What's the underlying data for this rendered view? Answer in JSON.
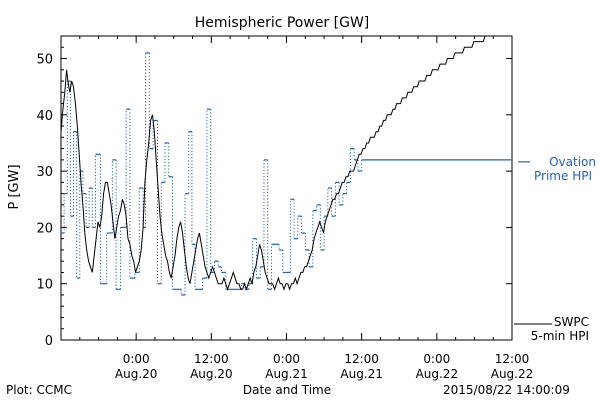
{
  "chart_data": {
    "type": "line",
    "title": "Hemispheric Power [GW]",
    "xlabel": "Date and Time",
    "ylabel": "P [GW]",
    "xlim": [
      -6,
      66
    ],
    "ylim": [
      0,
      54
    ],
    "y_ticks": [
      0,
      10,
      20,
      30,
      40,
      50
    ],
    "x_ticks": [
      {
        "t": 6,
        "label1": "0:00",
        "label2": "Aug.20"
      },
      {
        "t": 18,
        "label1": "12:00",
        "label2": "Aug.20"
      },
      {
        "t": 30,
        "label1": "0:00",
        "label2": "Aug.21"
      },
      {
        "t": 42,
        "label1": "12:00",
        "label2": "Aug.21"
      },
      {
        "t": 54,
        "label1": "0:00",
        "label2": "Aug.22"
      },
      {
        "t": 66,
        "label1": "12:00",
        "label2": "Aug.22"
      }
    ],
    "grid": false,
    "footer_left": "Plot: CCMC",
    "footer_right": "2015/08/22 14:00:09",
    "series": [
      {
        "name": "SWPC 5-min HPI",
        "label_lines": [
          "SWPC",
          "5-min HPI"
        ],
        "color": "#000000",
        "style": "solid",
        "points": [
          [
            -6,
            37
          ],
          [
            -5.7,
            41
          ],
          [
            -5.4,
            44
          ],
          [
            -5.1,
            48
          ],
          [
            -4.9,
            46
          ],
          [
            -4.6,
            44
          ],
          [
            -4.3,
            46
          ],
          [
            -4.0,
            45
          ],
          [
            -3.7,
            42
          ],
          [
            -3.4,
            38
          ],
          [
            -3.1,
            33
          ],
          [
            -2.8,
            28
          ],
          [
            -2.5,
            24
          ],
          [
            -2.2,
            19
          ],
          [
            -1.9,
            16
          ],
          [
            -1.6,
            14
          ],
          [
            -1.3,
            13
          ],
          [
            -1.0,
            12
          ],
          [
            -0.7,
            15
          ],
          [
            -0.4,
            18
          ],
          [
            -0.1,
            21
          ],
          [
            0.2,
            20
          ],
          [
            0.5,
            22
          ],
          [
            0.8,
            26
          ],
          [
            1.1,
            28
          ],
          [
            1.4,
            28
          ],
          [
            1.7,
            26
          ],
          [
            2.0,
            24
          ],
          [
            2.3,
            21
          ],
          [
            2.6,
            18
          ],
          [
            2.9,
            20
          ],
          [
            3.2,
            22
          ],
          [
            3.5,
            23
          ],
          [
            3.8,
            25
          ],
          [
            4.1,
            24
          ],
          [
            4.4,
            22
          ],
          [
            4.7,
            18
          ],
          [
            5.0,
            17
          ],
          [
            5.3,
            15
          ],
          [
            5.6,
            14
          ],
          [
            5.9,
            12
          ],
          [
            6.2,
            13
          ],
          [
            6.5,
            14
          ],
          [
            6.8,
            16
          ],
          [
            7.1,
            20
          ],
          [
            7.4,
            28
          ],
          [
            7.7,
            32
          ],
          [
            8.0,
            35
          ],
          [
            8.3,
            39
          ],
          [
            8.6,
            40
          ],
          [
            8.9,
            37
          ],
          [
            9.2,
            32
          ],
          [
            9.5,
            27
          ],
          [
            9.8,
            22
          ],
          [
            10.1,
            19
          ],
          [
            10.4,
            17
          ],
          [
            10.7,
            15
          ],
          [
            11.0,
            14
          ],
          [
            11.3,
            12
          ],
          [
            11.6,
            11
          ],
          [
            11.9,
            13
          ],
          [
            12.2,
            15
          ],
          [
            12.5,
            18
          ],
          [
            12.8,
            20
          ],
          [
            13.1,
            21
          ],
          [
            13.4,
            19
          ],
          [
            13.7,
            16
          ],
          [
            14.0,
            13
          ],
          [
            14.3,
            11
          ],
          [
            14.6,
            10
          ],
          [
            14.9,
            12
          ],
          [
            15.2,
            14
          ],
          [
            15.5,
            16
          ],
          [
            15.8,
            18
          ],
          [
            16.1,
            19
          ],
          [
            16.4,
            17
          ],
          [
            16.7,
            15
          ],
          [
            17.0,
            13
          ],
          [
            17.3,
            12
          ],
          [
            17.6,
            11
          ],
          [
            17.9,
            12
          ],
          [
            18.2,
            13
          ],
          [
            18.5,
            12
          ],
          [
            18.8,
            11
          ],
          [
            19.1,
            10
          ],
          [
            19.4,
            10
          ],
          [
            19.7,
            10
          ],
          [
            20.0,
            11
          ],
          [
            20.3,
            10
          ],
          [
            20.6,
            9
          ],
          [
            20.9,
            10
          ],
          [
            21.2,
            11
          ],
          [
            21.5,
            12
          ],
          [
            21.8,
            11
          ],
          [
            22.1,
            10
          ],
          [
            22.4,
            10
          ],
          [
            22.7,
            9
          ],
          [
            23.0,
            9
          ],
          [
            23.3,
            10
          ],
          [
            23.6,
            9
          ],
          [
            23.9,
            10
          ],
          [
            24.2,
            11
          ],
          [
            24.5,
            10
          ],
          [
            24.8,
            12
          ],
          [
            25.1,
            13
          ],
          [
            25.4,
            15
          ],
          [
            25.7,
            17
          ],
          [
            26.0,
            16
          ],
          [
            26.3,
            14
          ],
          [
            26.6,
            12
          ],
          [
            26.9,
            11
          ],
          [
            27.2,
            10
          ],
          [
            27.5,
            10
          ],
          [
            27.8,
            10
          ],
          [
            28.1,
            9
          ],
          [
            28.4,
            10
          ],
          [
            28.7,
            11
          ],
          [
            29.0,
            10
          ],
          [
            29.3,
            10
          ],
          [
            29.6,
            9
          ],
          [
            29.9,
            10
          ],
          [
            30.2,
            10
          ],
          [
            30.5,
            9
          ],
          [
            30.8,
            10
          ],
          [
            31.1,
            10
          ],
          [
            31.4,
            11
          ],
          [
            31.7,
            10
          ],
          [
            32.0,
            11
          ],
          [
            32.3,
            12
          ],
          [
            32.6,
            12
          ],
          [
            32.9,
            13
          ],
          [
            33.2,
            13
          ],
          [
            33.5,
            14
          ],
          [
            33.8,
            15
          ],
          [
            34.1,
            16
          ],
          [
            34.4,
            18
          ],
          [
            34.7,
            19
          ],
          [
            35.0,
            20
          ],
          [
            35.3,
            21
          ],
          [
            35.6,
            20
          ],
          [
            35.9,
            19
          ],
          [
            36.2,
            21
          ],
          [
            36.5,
            22
          ],
          [
            36.8,
            23
          ],
          [
            37.1,
            24
          ],
          [
            37.4,
            25
          ],
          [
            37.7,
            25
          ],
          [
            38.0,
            26
          ],
          [
            38.3,
            26
          ],
          [
            38.6,
            27
          ],
          [
            38.9,
            28
          ],
          [
            39.2,
            28
          ],
          [
            39.5,
            29
          ],
          [
            39.8,
            29
          ],
          [
            40.1,
            30
          ],
          [
            40.4,
            30
          ],
          [
            40.7,
            30
          ],
          [
            41.0,
            31
          ],
          [
            41.3,
            32
          ],
          [
            41.6,
            33
          ],
          [
            41.9,
            33
          ],
          [
            42.2,
            34
          ],
          [
            42.5,
            34
          ],
          [
            42.8,
            35
          ],
          [
            43.1,
            35
          ],
          [
            43.4,
            36
          ],
          [
            43.7,
            36
          ],
          [
            44.0,
            36
          ],
          [
            44.3,
            37
          ],
          [
            44.6,
            37
          ],
          [
            44.9,
            38
          ],
          [
            45.2,
            38
          ],
          [
            45.5,
            39
          ],
          [
            45.8,
            39
          ],
          [
            46.1,
            40
          ],
          [
            46.4,
            40
          ],
          [
            46.7,
            40
          ],
          [
            47.0,
            41
          ],
          [
            47.3,
            41
          ],
          [
            47.6,
            42
          ],
          [
            47.9,
            42
          ],
          [
            48.2,
            42
          ],
          [
            48.5,
            43
          ],
          [
            48.8,
            43
          ],
          [
            49.1,
            43
          ],
          [
            49.4,
            44
          ],
          [
            49.7,
            44
          ],
          [
            50.0,
            44
          ],
          [
            50.3,
            45
          ],
          [
            50.6,
            45
          ],
          [
            50.9,
            45
          ],
          [
            51.2,
            46
          ],
          [
            51.5,
            46
          ],
          [
            51.8,
            46
          ],
          [
            52.1,
            46
          ],
          [
            52.4,
            47
          ],
          [
            52.7,
            47
          ],
          [
            53.0,
            47
          ],
          [
            53.3,
            48
          ],
          [
            53.6,
            48
          ],
          [
            53.9,
            48
          ],
          [
            54.2,
            48
          ],
          [
            54.5,
            49
          ],
          [
            54.8,
            49
          ],
          [
            55.1,
            49
          ],
          [
            55.4,
            49
          ],
          [
            55.7,
            50
          ],
          [
            56.0,
            50
          ],
          [
            56.3,
            50
          ],
          [
            56.6,
            50
          ],
          [
            56.9,
            51
          ],
          [
            57.2,
            51
          ],
          [
            57.5,
            51
          ],
          [
            57.8,
            51
          ],
          [
            58.1,
            51
          ],
          [
            58.4,
            52
          ],
          [
            58.7,
            52
          ],
          [
            59.0,
            52
          ],
          [
            59.3,
            52
          ],
          [
            59.6,
            52
          ],
          [
            59.9,
            53
          ],
          [
            60.2,
            53
          ],
          [
            60.5,
            53
          ],
          [
            60.8,
            53
          ],
          [
            61.1,
            53
          ],
          [
            61.4,
            53
          ],
          [
            61.7,
            54
          ],
          [
            62.0,
            54
          ],
          [
            62.3,
            54
          ],
          [
            62.6,
            54
          ],
          [
            62.9,
            54
          ],
          [
            63.2,
            54
          ],
          [
            63.5,
            54
          ],
          [
            63.8,
            54
          ],
          [
            64.1,
            54
          ],
          [
            64.4,
            54
          ],
          [
            64.7,
            54
          ],
          [
            65.0,
            54
          ],
          [
            65.3,
            54
          ],
          [
            65.6,
            54
          ]
        ]
      },
      {
        "name": "Ovation Prime HPI",
        "label_lines": [
          "Ovation",
          "Prime HPI"
        ],
        "color": "#1f5fd6",
        "style": "dotted-step",
        "steps": [
          [
            -6,
            19
          ],
          [
            -5.5,
            26
          ],
          [
            -5,
            46
          ],
          [
            -4.5,
            22
          ],
          [
            -4,
            37
          ],
          [
            -3.5,
            11
          ],
          [
            -3,
            30
          ],
          [
            -2.5,
            26
          ],
          [
            -2,
            20
          ],
          [
            -1.5,
            27
          ],
          [
            -1,
            20
          ],
          [
            -0.5,
            33
          ],
          [
            0.3,
            10
          ],
          [
            1.3,
            19
          ],
          [
            2.2,
            32
          ],
          [
            2.8,
            9
          ],
          [
            3.5,
            20
          ],
          [
            4.4,
            41
          ],
          [
            5.0,
            11
          ],
          [
            5.8,
            12
          ],
          [
            6.5,
            27
          ],
          [
            7.1,
            20
          ],
          [
            7.5,
            51
          ],
          [
            8.1,
            34
          ],
          [
            8.7,
            39
          ],
          [
            9.4,
            10
          ],
          [
            10.0,
            28
          ],
          [
            10.6,
            35
          ],
          [
            11.2,
            29
          ],
          [
            11.8,
            9
          ],
          [
            12.6,
            9
          ],
          [
            13.2,
            8
          ],
          [
            13.8,
            26
          ],
          [
            14.4,
            37
          ],
          [
            14.9,
            17
          ],
          [
            15.4,
            9
          ],
          [
            16.1,
            9
          ],
          [
            16.6,
            11
          ],
          [
            17.3,
            41
          ],
          [
            17.9,
            12
          ],
          [
            18.5,
            14
          ],
          [
            19.1,
            13
          ],
          [
            19.6,
            12
          ],
          [
            20.3,
            9
          ],
          [
            21.0,
            9
          ],
          [
            21.6,
            9
          ],
          [
            22.2,
            9
          ],
          [
            22.8,
            10
          ],
          [
            23.4,
            9
          ],
          [
            24.0,
            10
          ],
          [
            24.6,
            18
          ],
          [
            25.2,
            11
          ],
          [
            25.8,
            13
          ],
          [
            26.4,
            32
          ],
          [
            27.0,
            9
          ],
          [
            27.6,
            17
          ],
          [
            28.2,
            17
          ],
          [
            28.8,
            16
          ],
          [
            29.4,
            12
          ],
          [
            30.0,
            12
          ],
          [
            30.6,
            25
          ],
          [
            31.2,
            18
          ],
          [
            31.8,
            22
          ],
          [
            32.4,
            19
          ],
          [
            33.0,
            16
          ],
          [
            33.6,
            13
          ],
          [
            34.2,
            23
          ],
          [
            34.8,
            24
          ],
          [
            35.4,
            16
          ],
          [
            36.0,
            22
          ],
          [
            36.6,
            27
          ],
          [
            37.2,
            22
          ],
          [
            37.8,
            28
          ],
          [
            38.4,
            24
          ],
          [
            39.0,
            26
          ],
          [
            39.6,
            28
          ],
          [
            40.2,
            34
          ],
          [
            40.8,
            32
          ],
          [
            41.4,
            30
          ],
          [
            42.0,
            32
          ]
        ]
      }
    ]
  }
}
